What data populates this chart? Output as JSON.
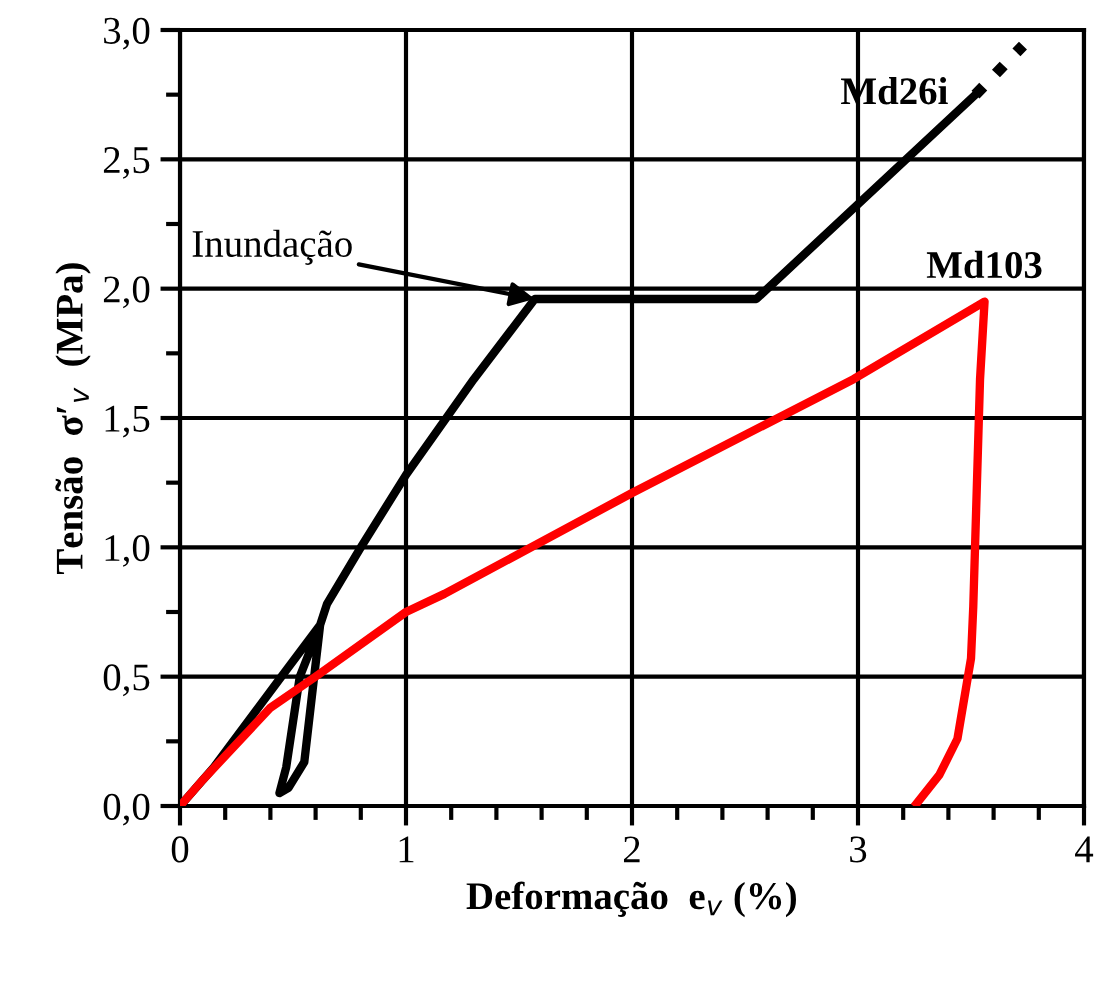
{
  "chart_data": {
    "type": "line",
    "xlabel": "Deformação  e$_{v}$ (%)",
    "ylabel": "Tensão  σ′$_{v}$  (MPa)",
    "xlim": [
      0,
      4
    ],
    "xticks": [
      0,
      1,
      2,
      3,
      4
    ],
    "ylim": [
      0,
      3.0
    ],
    "yticks": [
      {
        "value": 0,
        "label": "0,0"
      },
      {
        "value": 0.5,
        "label": "0,5"
      },
      {
        "value": 1.0,
        "label": "1,0"
      },
      {
        "value": 1.5,
        "label": "1,5"
      },
      {
        "value": 2.0,
        "label": "2,0"
      },
      {
        "value": 2.5,
        "label": "2,5"
      },
      {
        "value": 3.0,
        "label": "3,0"
      }
    ],
    "grid": true,
    "legend": false,
    "marker": "none",
    "series": [
      {
        "name": "Md26i",
        "color": "#000000",
        "line_style": "solid",
        "x": [
          0,
          0.15,
          0.44,
          0.62,
          0.55,
          0.48,
          0.44,
          0.47,
          0.53,
          0.62,
          0.65,
          0.8,
          1.0,
          1.3,
          1.57,
          2.55,
          3.52
        ],
        "values": [
          0,
          0.15,
          0.49,
          0.7,
          0.17,
          0.07,
          0.05,
          0.15,
          0.5,
          0.7,
          0.78,
          1.0,
          1.28,
          1.65,
          1.96,
          1.96,
          2.75
        ]
      },
      {
        "color": "#000000",
        "line_style": "dotted",
        "x": [
          3.52,
          3.73
        ],
        "values": [
          2.75,
          2.94
        ]
      },
      {
        "name": "Md103",
        "color": "#ff0000",
        "line_style": "solid",
        "x": [
          0,
          0.1,
          0.4,
          0.6,
          1.0,
          1.17,
          2.0,
          2.98,
          3.56,
          3.54,
          3.51,
          3.5,
          3.44,
          3.36,
          3.26
        ],
        "values": [
          0,
          0.1,
          0.38,
          0.5,
          0.75,
          0.82,
          1.21,
          1.65,
          1.95,
          1.65,
          0.77,
          0.57,
          0.26,
          0.12,
          0.01
        ]
      }
    ],
    "annotations": [
      {
        "text": "Inundação",
        "x": 1.57,
        "y": 1.96
      }
    ]
  }
}
